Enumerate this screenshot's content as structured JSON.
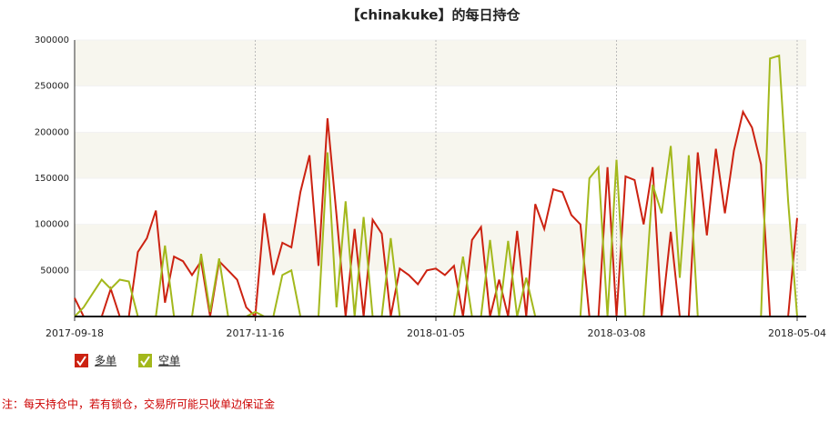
{
  "chart_data": {
    "type": "line",
    "title": "【chinakuke】的每日持仓",
    "categories": [
      "2017-09-18",
      null,
      null,
      null,
      null,
      null,
      null,
      null,
      null,
      null,
      null,
      null,
      null,
      null,
      null,
      null,
      null,
      null,
      null,
      null,
      "2017-11-16",
      null,
      null,
      null,
      null,
      null,
      null,
      null,
      null,
      null,
      null,
      null,
      null,
      null,
      null,
      null,
      null,
      null,
      null,
      null,
      "2018-01-05",
      null,
      null,
      null,
      null,
      null,
      null,
      null,
      null,
      null,
      null,
      null,
      null,
      null,
      null,
      null,
      null,
      null,
      null,
      null,
      "2018-03-08",
      null,
      null,
      null,
      null,
      null,
      null,
      null,
      null,
      null,
      null,
      null,
      null,
      null,
      null,
      null,
      null,
      null,
      null,
      null,
      "2018-05-04"
    ],
    "series": [
      {
        "name": "多单",
        "color": "#cc2211",
        "values": [
          20000,
          0,
          0,
          0,
          30000,
          0,
          0,
          70000,
          85000,
          115000,
          15000,
          65000,
          60000,
          45000,
          60000,
          0,
          60000,
          50000,
          40000,
          10000,
          0,
          112000,
          45000,
          80000,
          75000,
          135000,
          175000,
          55000,
          215000,
          110000,
          0,
          95000,
          0,
          105000,
          90000,
          0,
          52000,
          45000,
          35000,
          50000,
          52000,
          45000,
          55000,
          0,
          83000,
          97000,
          0,
          40000,
          0,
          93000,
          0,
          122000,
          95000,
          138000,
          135000,
          110000,
          100000,
          0,
          0,
          162000,
          0,
          152000,
          148000,
          100000,
          162000,
          0,
          92000,
          0,
          0,
          178000,
          88000,
          182000,
          112000,
          180000,
          222000,
          205000,
          165000,
          0,
          0,
          0,
          107000
        ]
      },
      {
        "name": "空单",
        "color": "#a3b81c",
        "values": [
          0,
          10000,
          25000,
          40000,
          30000,
          40000,
          38000,
          0,
          0,
          0,
          77000,
          0,
          0,
          0,
          68000,
          5000,
          63000,
          0,
          0,
          0,
          5000,
          0,
          0,
          45000,
          50000,
          0,
          0,
          0,
          178000,
          10000,
          125000,
          0,
          108000,
          0,
          0,
          85000,
          0,
          0,
          0,
          0,
          0,
          0,
          0,
          65000,
          0,
          0,
          83000,
          0,
          82000,
          0,
          42000,
          0,
          0,
          0,
          0,
          0,
          0,
          150000,
          162000,
          0,
          170000,
          0,
          0,
          0,
          143000,
          112000,
          185000,
          42000,
          175000,
          0,
          0,
          0,
          0,
          0,
          0,
          0,
          0,
          280000,
          283000,
          125000,
          0
        ]
      }
    ],
    "ylim": [
      0,
      300000
    ],
    "yticks": [
      50000,
      100000,
      150000,
      200000,
      250000,
      300000
    ],
    "grid": true,
    "note": "注：每天持仓中，若有锁仓，交易所可能只收单边保证金"
  }
}
